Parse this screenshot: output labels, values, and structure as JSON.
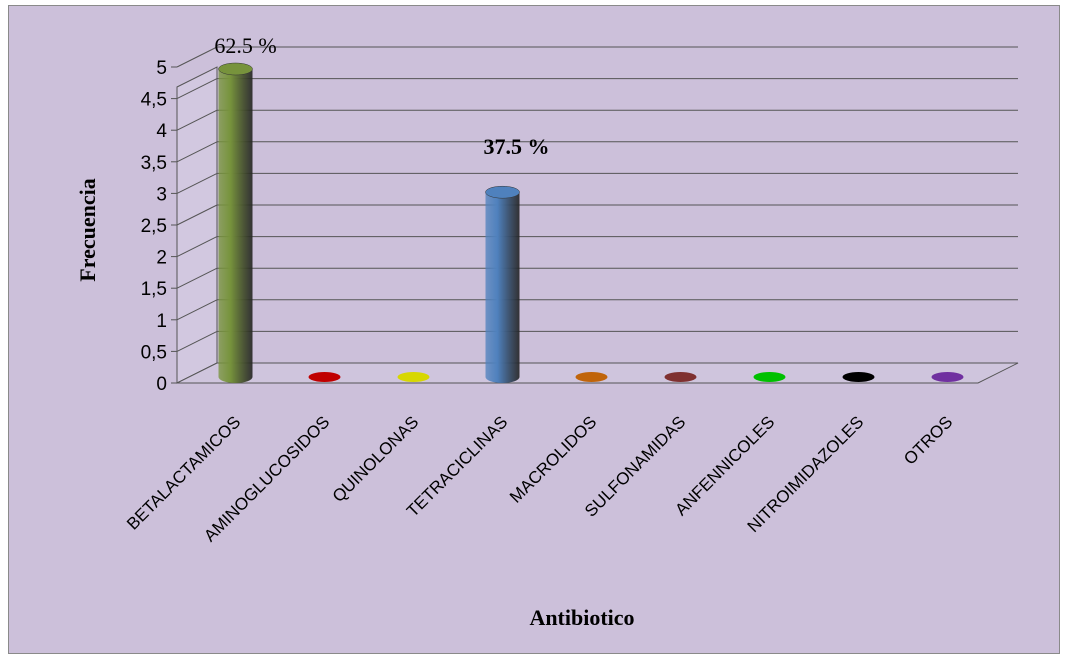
{
  "chart_data": {
    "type": "bar",
    "title": "",
    "xlabel": "Antibiotico",
    "ylabel": "Frecuencia",
    "ylim": [
      0,
      5
    ],
    "yticks": [
      "0",
      "0,5",
      "1",
      "1,5",
      "2",
      "2,5",
      "3",
      "3,5",
      "4",
      "4,5",
      "5"
    ],
    "categories": [
      "BETALACTAMICOS",
      "AMINOGLUCOSIDOS",
      "QUINOLONAS",
      "TETRACICLINAS",
      "MACROLIDOS",
      "SULFONAMIDAS",
      "ANFENNICOLES",
      "NITROIMIDAZOLES",
      "OTROS"
    ],
    "values": [
      5,
      0,
      0,
      3,
      0,
      0,
      0,
      0,
      0
    ],
    "colors": [
      "#77933c",
      "#c00000",
      "#d7d700",
      "#4f81bd",
      "#c0640a",
      "#7f3030",
      "#00c000",
      "#000000",
      "#7030a0"
    ],
    "data_labels": [
      "62.5 %",
      "",
      "",
      "37.5 %",
      "",
      "",
      "",
      "",
      ""
    ],
    "grid": true,
    "legend": "none",
    "background": "#ccc0da"
  }
}
